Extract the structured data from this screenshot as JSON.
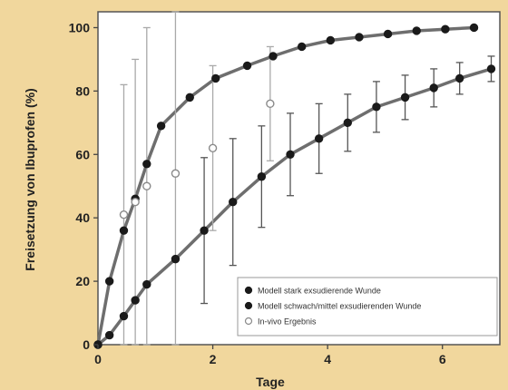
{
  "chart_data": {
    "type": "line",
    "title": "",
    "xlabel": "Tage",
    "ylabel": "Freisetzung von Ibuprofen (%)",
    "xlim": [
      0,
      7
    ],
    "ylim": [
      0,
      105
    ],
    "xticks": [
      0,
      2,
      4,
      6
    ],
    "yticks": [
      0,
      20,
      40,
      60,
      80,
      100
    ],
    "legend_position": "bottom-right",
    "grid": false,
    "series": [
      {
        "name": "Modell stark exsudierende Wunde",
        "marker": "filled-circle",
        "color": "#1a1a1a",
        "x": [
          0,
          0.2,
          0.45,
          0.65,
          0.85,
          1.1,
          1.6,
          2.05,
          2.6,
          3.05,
          3.55,
          4.05,
          4.55,
          5.05,
          5.55,
          6.05,
          6.55
        ],
        "y": [
          0,
          20,
          36,
          46,
          57,
          69,
          78,
          84,
          88,
          91,
          94,
          96,
          97,
          98,
          99,
          99.5,
          100
        ],
        "error": []
      },
      {
        "name": "Modell schwach/mittel exsudierenden Wunde",
        "marker": "filled-circle",
        "color": "#1a1a1a",
        "x": [
          0,
          0.2,
          0.45,
          0.65,
          0.85,
          1.35,
          1.85,
          2.35,
          2.85,
          3.35,
          3.85,
          4.35,
          4.85,
          5.35,
          5.85,
          6.3,
          6.85
        ],
        "y": [
          0,
          3,
          9,
          14,
          19,
          27,
          36,
          45,
          53,
          60,
          65,
          70,
          75,
          78,
          81,
          84,
          87
        ],
        "error": [
          0,
          0,
          0,
          0,
          0,
          0,
          23,
          20,
          16,
          13,
          11,
          9,
          8,
          7,
          6,
          5,
          4
        ]
      },
      {
        "name": "In-vivo Ergebnis",
        "marker": "open-circle",
        "color": "#8a8a8a",
        "x": [
          0.45,
          0.65,
          0.85,
          1.35,
          2.0,
          3.0
        ],
        "y": [
          41,
          45,
          50,
          54,
          62,
          76
        ],
        "error": [
          41,
          45,
          50,
          54,
          26,
          18
        ]
      }
    ]
  }
}
